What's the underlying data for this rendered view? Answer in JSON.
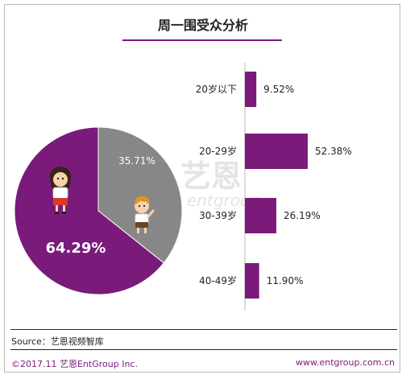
{
  "title": "周一围受众分析",
  "watermark": {
    "main": "艺恩",
    "sub": "entgroup"
  },
  "source": "Source：艺恩视频智库",
  "footer": {
    "left": "©2017.11  艺恩EntGroup Inc.",
    "right": "www.entgroup.com.cn"
  },
  "colors": {
    "accent": "#7a1a7a",
    "gray": "#878787",
    "text": "#222222"
  },
  "chart_data": [
    {
      "type": "pie",
      "labels": [
        "女性",
        "男性"
      ],
      "values": [
        64.29,
        35.71
      ],
      "value_labels": [
        "64.29%",
        "35.71%"
      ],
      "colors": [
        "#7a1a7a",
        "#878787"
      ],
      "icons": [
        "female-figure-icon",
        "male-figure-icon"
      ]
    },
    {
      "type": "bar",
      "orientation": "horizontal",
      "categories": [
        "20岁以下",
        "20-29岁",
        "30-39岁",
        "40-49岁"
      ],
      "values": [
        9.52,
        52.38,
        26.19,
        11.9
      ],
      "value_labels": [
        "9.52%",
        "52.38%",
        "26.19%",
        "11.90%"
      ],
      "color": "#7a1a7a"
    }
  ]
}
